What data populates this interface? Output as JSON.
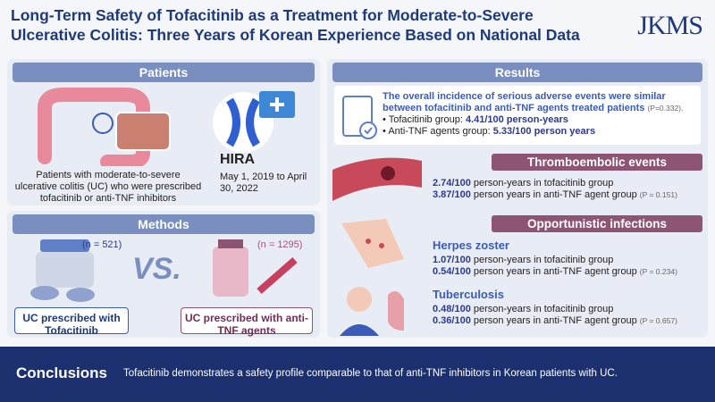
{
  "header": {
    "title_lines": [
      "Long-Term Safety of Tofacitinib as a Treatment for Moderate-to-Severe",
      "Ulcerative Colitis: Three Years of Korean Experience Based on National Data"
    ],
    "logo": "JKMS"
  },
  "patients": {
    "heading": "Patients",
    "description": "Patients with moderate-to-severe ulcerative colitis (UC) who were prescribed tofacitinib or anti-TNF inhibitors",
    "source": "HIRA",
    "period": "May 1, 2019 to April 30, 2022"
  },
  "methods": {
    "heading": "Methods",
    "vs": "VS.",
    "groups": [
      {
        "n": "(n = 521)",
        "label": "UC prescribed with Tofacitinib"
      },
      {
        "n": "(n = 1295)",
        "label": "UC prescribed with anti-TNF agents"
      }
    ]
  },
  "results": {
    "heading": "Results",
    "summary": "The overall incidence of serious adverse events were similar between tofacitinib and anti-TNF agents treated patients",
    "summary_p": "(P=0.332).",
    "bullets": [
      {
        "label": "Tofacitinib group: ",
        "value": "4.41/100 person-years"
      },
      {
        "label": "Anti-TNF agents group: ",
        "value": "5.33/100 person years"
      }
    ],
    "thromboembolic": {
      "title": "Thromboembolic events",
      "lines": [
        {
          "value": "2.74/100",
          "text": " person-years in tofacitinib group"
        },
        {
          "value": "3.87/100",
          "text": " person years in anti-TNF agent group",
          "p": "(P = 0.151)"
        }
      ]
    },
    "opportunistic": {
      "title": "Opportunistic infections",
      "herpes_zoster": {
        "title": "Herpes zoster",
        "lines": [
          {
            "value": "1.07/100",
            "text": " person-years in tofacitinib group"
          },
          {
            "value": "0.54/100",
            "text": " person years in anti-TNF agent group",
            "p": "(P = 0.234)"
          }
        ]
      },
      "tuberculosis": {
        "title": "Tuberculosis",
        "lines": [
          {
            "value": "0.48/100",
            "text": " person-years in tofacitinib group"
          },
          {
            "value": "0.36/100",
            "text": " person years in anti-TNF agent group",
            "p": "(P = 0.657)"
          }
        ]
      }
    }
  },
  "conclusions": {
    "heading": "Conclusions",
    "text": "Tofacitinib demonstrates a safety profile comparable to that of anti-TNF inhibitors in Korean patients with UC."
  }
}
